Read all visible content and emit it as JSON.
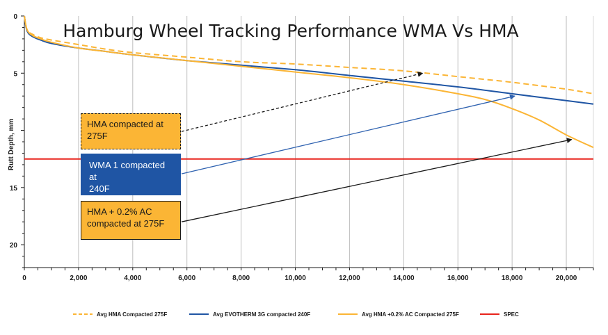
{
  "chart_data": {
    "type": "line",
    "title": "Hamburg Wheel Tracking Performance WMA Vs HMA",
    "xlabel": "",
    "ylabel": "Rutt Depth, mm",
    "xlim": [
      0,
      21000
    ],
    "ylim": [
      0,
      22
    ],
    "y_inverted": true,
    "x_ticks": [
      0,
      2000,
      4000,
      6000,
      8000,
      10000,
      12000,
      14000,
      16000,
      18000,
      20000
    ],
    "x_tick_labels": [
      "0",
      "2,000",
      "4,000",
      "6,000",
      "8,000",
      "10,000",
      "12,000",
      "14,000",
      "16,000",
      "18,000",
      "20,000"
    ],
    "y_ticks": [
      0,
      5,
      10,
      15,
      20
    ],
    "y_tick_labels": [
      "0",
      "5",
      "",
      "15",
      "20"
    ],
    "grid": "vertical",
    "legend_position": "bottom",
    "series": [
      {
        "name": "Avg HMA Compacted 275F",
        "color": "#fbb535",
        "style": "dashed",
        "x": [
          0,
          100,
          300,
          600,
          1000,
          2000,
          3000,
          4000,
          6000,
          8000,
          10000,
          12000,
          14000,
          16000,
          18000,
          20000,
          21000
        ],
        "y": [
          0,
          1.2,
          1.6,
          1.9,
          2.1,
          2.5,
          2.9,
          3.2,
          3.6,
          4.0,
          4.2,
          4.5,
          4.8,
          5.3,
          5.8,
          6.4,
          6.8
        ]
      },
      {
        "name": "Avg EVOTHERM 3G compacted 240F",
        "color": "#1f55a4",
        "style": "solid",
        "x": [
          0,
          100,
          300,
          600,
          1000,
          2000,
          3000,
          4000,
          6000,
          8000,
          10000,
          12000,
          14000,
          16000,
          18000,
          20000,
          21000
        ],
        "y": [
          0,
          1.3,
          1.8,
          2.1,
          2.4,
          2.8,
          3.1,
          3.4,
          3.9,
          4.3,
          4.7,
          5.2,
          5.7,
          6.2,
          6.8,
          7.4,
          7.7
        ]
      },
      {
        "name": "Avg HMA +0.2% AC Compacted 275F",
        "color": "#fbb535",
        "style": "solid",
        "x": [
          0,
          100,
          300,
          600,
          1000,
          2000,
          3000,
          4000,
          6000,
          8000,
          10000,
          12000,
          14000,
          16000,
          17000,
          18000,
          19000,
          20000,
          21000
        ],
        "y": [
          0,
          1.2,
          1.7,
          2.0,
          2.3,
          2.8,
          3.1,
          3.4,
          3.9,
          4.4,
          4.9,
          5.4,
          6.0,
          6.8,
          7.3,
          8.1,
          9.1,
          10.4,
          11.5
        ]
      },
      {
        "name": "SPEC",
        "color": "#e8231b",
        "style": "solid",
        "x": [
          0,
          21000
        ],
        "y": [
          12.5,
          12.5
        ]
      }
    ],
    "annotations": [
      {
        "text_lines": [
          "HMA compacted at",
          "275F"
        ],
        "arrow_from": [
          5800,
          10.1
        ],
        "arrow_to": [
          14700,
          5.0
        ],
        "arrow_color": "#1a1a1a",
        "arrow_style": "dashed"
      },
      {
        "text_lines": [
          "WMA 1 compacted at",
          "240F"
        ],
        "arrow_from": [
          5800,
          13.8
        ],
        "arrow_to": [
          18100,
          7.0
        ],
        "arrow_color": "#2f62b0",
        "arrow_style": "solid"
      },
      {
        "text_lines": [
          "HMA + 0.2% AC",
          "compacted at 275F"
        ],
        "arrow_from": [
          5800,
          18.0
        ],
        "arrow_to": [
          20200,
          10.8
        ],
        "arrow_color": "#1a1a1a",
        "arrow_style": "solid"
      }
    ]
  }
}
